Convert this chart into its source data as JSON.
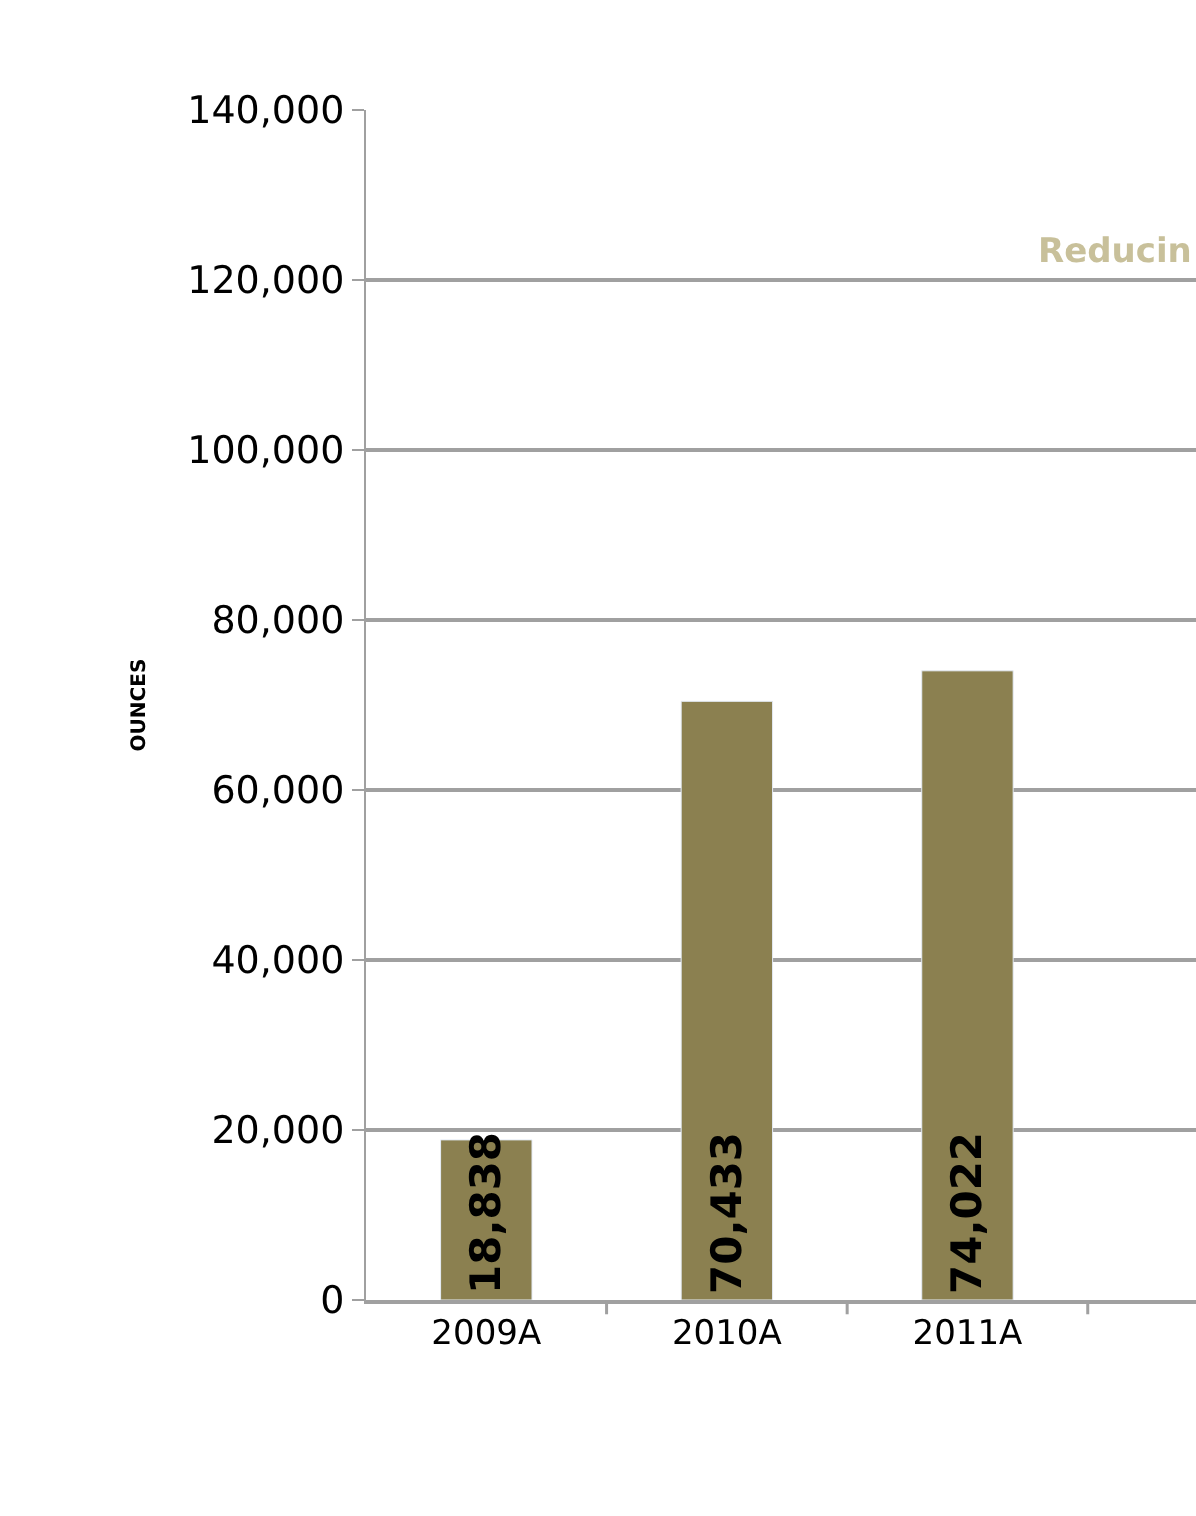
{
  "chart_data": {
    "type": "bar",
    "ylabel": "OUNCES",
    "categories": [
      "2009A",
      "2010A",
      "2011A"
    ],
    "values": [
      18838,
      70433,
      74022
    ],
    "color": "#8b8050",
    "value_labels": [
      "18,838",
      "70,433",
      "74,022"
    ],
    "ylim": [
      0,
      140000
    ],
    "yticks": [
      {
        "value": 0,
        "label": "0"
      },
      {
        "value": 20000,
        "label": "20,000"
      },
      {
        "value": 40000,
        "label": "40,000"
      },
      {
        "value": 60000,
        "label": "60,000"
      },
      {
        "value": 80000,
        "label": "80,000"
      },
      {
        "value": 100000,
        "label": "100,000"
      },
      {
        "value": 120000,
        "label": "120,000"
      },
      {
        "value": 140000,
        "label": "140,000"
      }
    ],
    "grid": "y",
    "legend": false,
    "annotations": [
      "Reducin"
    ]
  }
}
